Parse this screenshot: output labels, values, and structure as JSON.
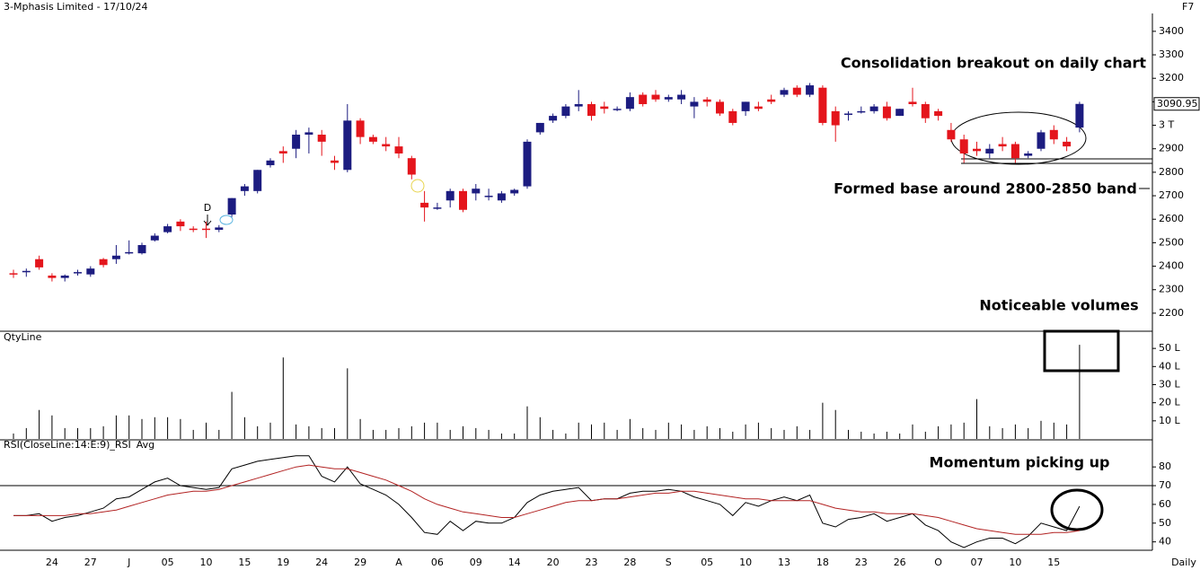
{
  "chart_data": [
    {
      "type": "candlestick",
      "title": "3-Mphasis Limited - 17/10/24",
      "corner_label": "F7",
      "up_color": "#1c1c80",
      "down_color": "#e4151c",
      "grid": false,
      "ylim": [
        2127,
        3476
      ],
      "yticks": [
        2200,
        2300,
        2400,
        2500,
        2600,
        2700,
        2800,
        2900,
        {
          "value": 3000,
          "label": "3 T"
        },
        3100,
        3200,
        3300,
        3400
      ],
      "open": [
        2370,
        2375,
        2430,
        2360,
        2350,
        2370,
        2365,
        2430,
        2430,
        2460,
        2455,
        2510,
        2545,
        2590,
        2560,
        2560,
        2555,
        2620,
        2720,
        2720,
        2830,
        2890,
        2900,
        2960,
        2960,
        2850,
        2810,
        3020,
        2950,
        2920,
        2910,
        2860,
        2670,
        2650,
        2680,
        2720,
        2710,
        2700,
        2680,
        2710,
        2740,
        2970,
        3020,
        3040,
        3080,
        3090,
        3080,
        3070,
        3070,
        3130,
        3130,
        3110,
        3110,
        3080,
        3110,
        3100,
        3060,
        3060,
        3080,
        3110,
        3130,
        3160,
        3130,
        3160,
        3060,
        3050,
        3060,
        3060,
        3080,
        3040,
        3100,
        3090,
        3060,
        2980,
        2940,
        2900,
        2880,
        2920,
        2920,
        2870,
        2900,
        2980,
        2930,
        2990
      ],
      "high": [
        2385,
        2390,
        2445,
        2370,
        2365,
        2385,
        2400,
        2435,
        2490,
        2510,
        2500,
        2540,
        2580,
        2600,
        2570,
        2590,
        2575,
        2690,
        2750,
        2810,
        2860,
        2910,
        2980,
        2990,
        2980,
        2870,
        3090,
        3030,
        2960,
        2950,
        2950,
        2870,
        2720,
        2670,
        2730,
        2730,
        2750,
        2730,
        2720,
        2730,
        2940,
        3010,
        3050,
        3090,
        3150,
        3100,
        3100,
        3080,
        3140,
        3140,
        3150,
        3130,
        3150,
        3120,
        3120,
        3110,
        3070,
        3100,
        3100,
        3130,
        3160,
        3170,
        3180,
        3170,
        3080,
        3060,
        3080,
        3090,
        3100,
        3070,
        3160,
        3100,
        3070,
        3010,
        2960,
        2930,
        2920,
        2950,
        2930,
        2890,
        2980,
        3000,
        2950,
        3100
      ],
      "low": [
        2350,
        2355,
        2385,
        2335,
        2335,
        2360,
        2355,
        2395,
        2410,
        2450,
        2450,
        2505,
        2540,
        2550,
        2545,
        2520,
        2545,
        2610,
        2700,
        2710,
        2820,
        2840,
        2860,
        2880,
        2870,
        2810,
        2800,
        2920,
        2920,
        2890,
        2860,
        2770,
        2590,
        2640,
        2650,
        2630,
        2680,
        2680,
        2670,
        2700,
        2730,
        2960,
        3010,
        3030,
        3060,
        3020,
        3050,
        3060,
        3060,
        3080,
        3100,
        3100,
        3090,
        3030,
        3080,
        3040,
        3000,
        3040,
        3060,
        3090,
        3120,
        3120,
        3120,
        3000,
        2930,
        3020,
        3050,
        3050,
        3020,
        3040,
        3080,
        3010,
        3020,
        2930,
        2840,
        2870,
        2860,
        2890,
        2840,
        2860,
        2890,
        2920,
        2890,
        2970
      ],
      "close": [
        2365,
        2380,
        2395,
        2350,
        2360,
        2375,
        2390,
        2405,
        2445,
        2460,
        2490,
        2530,
        2570,
        2570,
        2555,
        2555,
        2565,
        2690,
        2740,
        2810,
        2850,
        2880,
        2960,
        2970,
        2930,
        2840,
        3020,
        2950,
        2930,
        2910,
        2880,
        2790,
        2650,
        2650,
        2720,
        2640,
        2730,
        2700,
        2710,
        2725,
        2930,
        3010,
        3040,
        3080,
        3090,
        3040,
        3070,
        3070,
        3120,
        3090,
        3110,
        3120,
        3130,
        3100,
        3100,
        3050,
        3010,
        3100,
        3070,
        3100,
        3150,
        3130,
        3170,
        3010,
        3000,
        3050,
        3060,
        3080,
        3030,
        3070,
        3090,
        3030,
        3040,
        2940,
        2880,
        2890,
        2900,
        2910,
        2860,
        2880,
        2970,
        2940,
        2910,
        3090.95
      ],
      "annotations": [
        "Consolidation breakout on daily chart",
        "Formed base around 2800-2850 band",
        "Noticeable volumes",
        "D"
      ]
    },
    {
      "type": "bar",
      "title": "QtyLine",
      "color": "#000000",
      "grid": false,
      "ylim": [
        0,
        59
      ],
      "yticks": [
        {
          "value": 10,
          "label": "10 L"
        },
        {
          "value": 20,
          "label": "20 L"
        },
        {
          "value": 30,
          "label": "30 L"
        },
        {
          "value": 40,
          "label": "40 L"
        },
        {
          "value": 50,
          "label": "50 L"
        }
      ],
      "values": [
        3,
        6,
        16,
        13,
        6,
        6,
        6,
        7,
        13,
        13,
        11,
        12,
        12,
        11,
        5,
        9,
        5,
        26,
        12,
        7,
        9,
        45,
        8,
        7,
        6,
        6,
        39,
        11,
        5,
        5,
        6,
        7,
        9,
        9,
        5,
        7,
        6,
        5,
        3,
        3,
        18,
        12,
        5,
        3,
        9,
        8,
        9,
        5,
        11,
        6,
        5,
        9,
        8,
        5,
        7,
        6,
        4,
        8,
        9,
        6,
        5,
        7,
        5,
        20,
        16,
        5,
        4,
        3,
        4,
        3,
        8,
        4,
        7,
        8,
        9,
        22,
        7,
        6,
        8,
        6,
        10,
        9,
        8,
        52
      ]
    },
    {
      "type": "line",
      "grid": false,
      "hline": 70,
      "x_label": "Daily",
      "ylim": [
        36,
        93.5
      ],
      "yticks": [
        40,
        50,
        60,
        70,
        80
      ],
      "categories": [
        null,
        null,
        null,
        "24",
        null,
        null,
        "27",
        null,
        null,
        "J",
        null,
        null,
        "05",
        null,
        null,
        "10",
        null,
        null,
        "15",
        null,
        null,
        "19",
        null,
        null,
        "24",
        null,
        null,
        "29",
        null,
        null,
        "A",
        null,
        null,
        "06",
        null,
        null,
        "09",
        null,
        null,
        "14",
        null,
        null,
        "20",
        null,
        null,
        "23",
        null,
        null,
        "28",
        null,
        null,
        "S",
        null,
        null,
        "05",
        null,
        null,
        "10",
        null,
        null,
        "13",
        null,
        null,
        "18",
        null,
        null,
        "23",
        null,
        null,
        "26",
        null,
        null,
        "O",
        null,
        null,
        "07",
        null,
        null,
        "10",
        null,
        null,
        "15",
        null,
        null
      ],
      "series": [
        {
          "name": "RSI(CloseLine:14:E:9)_RSI",
          "color": "#000000",
          "values": [
            54,
            54,
            55,
            51,
            53,
            54,
            56,
            58,
            63,
            64,
            68,
            72,
            74,
            70,
            69,
            68,
            69,
            79,
            81,
            83,
            84,
            85,
            86,
            86,
            75,
            72,
            80,
            71,
            68,
            65,
            60,
            53,
            45,
            44,
            51,
            46,
            51,
            50,
            50,
            53,
            61,
            65,
            67,
            68,
            69,
            62,
            63,
            63,
            66,
            67,
            67,
            68,
            67,
            64,
            62,
            60,
            54,
            61,
            59,
            62,
            64,
            62,
            65,
            50,
            48,
            52,
            53,
            55,
            51,
            53,
            55,
            49,
            46,
            40,
            37,
            40,
            42,
            42,
            39,
            43,
            50,
            48,
            46,
            59
          ]
        },
        {
          "name": "Avg",
          "color": "#b22222",
          "values": [
            54,
            54,
            54,
            54,
            54,
            55,
            55,
            56,
            57,
            59,
            61,
            63,
            65,
            66,
            67,
            67,
            68,
            70,
            72,
            74,
            76,
            78,
            80,
            81,
            80,
            79,
            79,
            77,
            75,
            73,
            70,
            67,
            63,
            60,
            58,
            56,
            55,
            54,
            53,
            53,
            55,
            57,
            59,
            61,
            62,
            62,
            63,
            63,
            64,
            65,
            66,
            66,
            67,
            67,
            66,
            65,
            64,
            63,
            63,
            62,
            62,
            62,
            62,
            60,
            58,
            57,
            56,
            56,
            55,
            55,
            55,
            54,
            53,
            51,
            49,
            47,
            46,
            45,
            44,
            44,
            44,
            45,
            45,
            46
          ]
        }
      ],
      "annotations": [
        "Momentum picking up"
      ]
    }
  ]
}
